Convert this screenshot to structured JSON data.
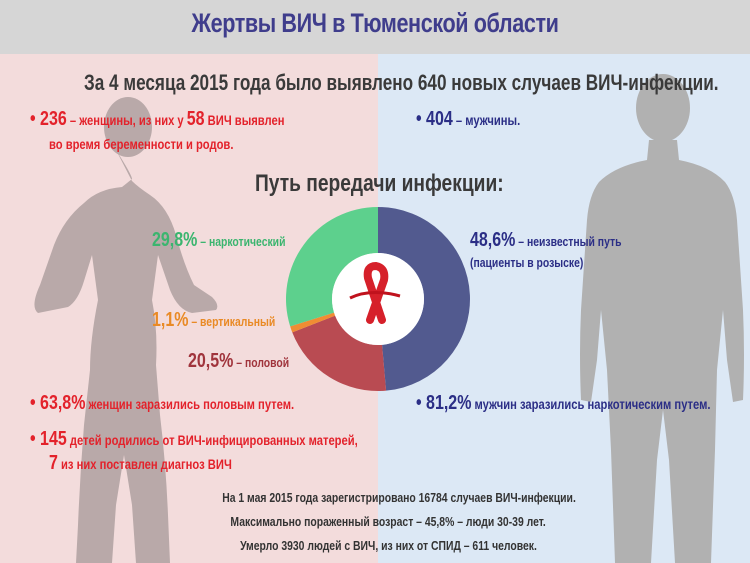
{
  "title": "Жертвы ВИЧ в Тюменской области",
  "subtitle": "За 4 месяца 2015  года было выявлено 640 новых случаев ВИЧ-инфекции.",
  "women": {
    "count": "236",
    "text1": " – женщины, из них у ",
    "pregnant_count": "58",
    "text2": " ВИЧ выявлен",
    "line2": "во время беременности и родов."
  },
  "men": {
    "count": "404",
    "text": " – мужчины."
  },
  "transmission_heading": "Путь передачи инфекции:",
  "labels": {
    "narcotic_value": "29,8%",
    "narcotic_text": " – наркотический",
    "unknown_value": "48,6%",
    "unknown_text": " – неизвестный путь",
    "unknown_note": "(пациенты в розыске)",
    "vertical_value": "1,1%",
    "vertical_text": " – вертикальный",
    "sexual_value": "20,5%",
    "sexual_text": " – половой"
  },
  "facts": {
    "women_sexual_value": "63,8%",
    "women_sexual_text": " женщин заразились половым путем.",
    "men_narcotic_value": "81,2%",
    "men_narcotic_text": " мужчин заразились наркотическим путем.",
    "children_value": "145",
    "children_text": " детей родились от ВИЧ-инфицированных матерей,",
    "children_diag_value": "7",
    "children_diag_text": " из них поставлен диагноз ВИЧ"
  },
  "bottom": {
    "line1": "На 1 мая 2015 года зарегистрировано 16784 случаев ВИЧ-инфекции.",
    "line2": "Максимально пораженный возраст – 45,8% – люди 30-39 лет.",
    "line3": "Умерло 3930 людей с ВИЧ, из них от СПИД – 611 человек."
  },
  "colors": {
    "narcotic": "#5dd08d",
    "unknown": "#525a8f",
    "vertical": "#f08d33",
    "sexual": "#b94b52",
    "red_text": "#e3222b",
    "blue_text": "#2b2e86"
  },
  "chart_data": {
    "type": "pie",
    "title": "Путь передачи инфекции:",
    "series": [
      {
        "name": "неизвестный путь",
        "value": 48.6,
        "color": "#525a8f"
      },
      {
        "name": "половой",
        "value": 20.5,
        "color": "#b94b52"
      },
      {
        "name": "вертикальный",
        "value": 1.1,
        "color": "#f08d33"
      },
      {
        "name": "наркотический",
        "value": 29.8,
        "color": "#5dd08d"
      }
    ],
    "donut": true
  }
}
